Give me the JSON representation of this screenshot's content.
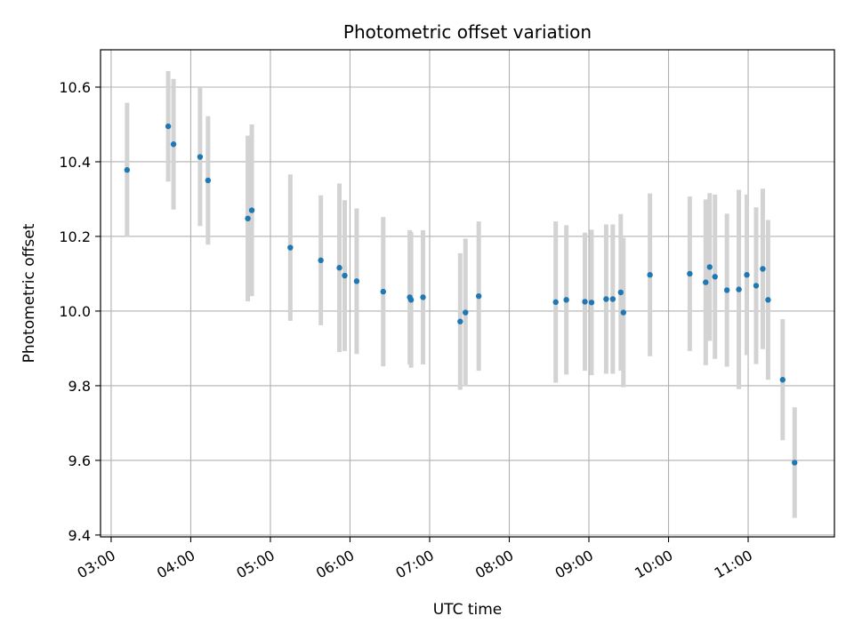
{
  "chart_data": {
    "type": "scatter",
    "title": "Photometric offset variation",
    "xlabel": "UTC time",
    "ylabel": "Photometric offset",
    "x_ticks": [
      "03:00",
      "04:00",
      "05:00",
      "06:00",
      "07:00",
      "08:00",
      "09:00",
      "10:00",
      "11:00"
    ],
    "y_ticks": [
      "9.4",
      "9.6",
      "9.8",
      "10.0",
      "10.2",
      "10.4",
      "10.6"
    ],
    "xlim": [
      "02:52",
      "12:05"
    ],
    "ylim": [
      9.395,
      10.7
    ],
    "grid": true,
    "point_color": "#1f77b4",
    "errorbar_color": "#d3d3d3",
    "points": [
      {
        "t": "03:12",
        "y": 10.378,
        "err": 0.18
      },
      {
        "t": "03:43",
        "y": 10.495,
        "err": 0.148
      },
      {
        "t": "03:47",
        "y": 10.447,
        "err": 0.175
      },
      {
        "t": "04:07",
        "y": 10.413,
        "err": 0.185
      },
      {
        "t": "04:13",
        "y": 10.35,
        "err": 0.172
      },
      {
        "t": "04:43",
        "y": 10.248,
        "err": 0.222
      },
      {
        "t": "04:46",
        "y": 10.27,
        "err": 0.23
      },
      {
        "t": "05:15",
        "y": 10.17,
        "err": 0.196
      },
      {
        "t": "05:38",
        "y": 10.136,
        "err": 0.174
      },
      {
        "t": "05:52",
        "y": 10.116,
        "err": 0.226
      },
      {
        "t": "05:56",
        "y": 10.095,
        "err": 0.202
      },
      {
        "t": "06:05",
        "y": 10.08,
        "err": 0.195
      },
      {
        "t": "06:25",
        "y": 10.052,
        "err": 0.2
      },
      {
        "t": "06:45",
        "y": 10.037,
        "err": 0.18
      },
      {
        "t": "06:46",
        "y": 10.03,
        "err": 0.182
      },
      {
        "t": "06:55",
        "y": 10.037,
        "err": 0.18
      },
      {
        "t": "07:23",
        "y": 9.972,
        "err": 0.183
      },
      {
        "t": "07:27",
        "y": 9.996,
        "err": 0.198
      },
      {
        "t": "07:37",
        "y": 10.04,
        "err": 0.2
      },
      {
        "t": "08:35",
        "y": 10.024,
        "err": 0.216
      },
      {
        "t": "08:43",
        "y": 10.03,
        "err": 0.2
      },
      {
        "t": "08:57",
        "y": 10.025,
        "err": 0.185
      },
      {
        "t": "09:02",
        "y": 10.023,
        "err": 0.195
      },
      {
        "t": "09:13",
        "y": 10.032,
        "err": 0.2
      },
      {
        "t": "09:18",
        "y": 10.032,
        "err": 0.2
      },
      {
        "t": "09:24",
        "y": 10.05,
        "err": 0.21
      },
      {
        "t": "09:26",
        "y": 9.996,
        "err": 0.2
      },
      {
        "t": "09:46",
        "y": 10.097,
        "err": 0.218
      },
      {
        "t": "10:16",
        "y": 10.1,
        "err": 0.207
      },
      {
        "t": "10:28",
        "y": 10.077,
        "err": 0.222
      },
      {
        "t": "10:31",
        "y": 10.118,
        "err": 0.198
      },
      {
        "t": "10:35",
        "y": 10.092,
        "err": 0.22
      },
      {
        "t": "10:44",
        "y": 10.056,
        "err": 0.205
      },
      {
        "t": "10:53",
        "y": 10.058,
        "err": 0.267
      },
      {
        "t": "10:59",
        "y": 10.097,
        "err": 0.215
      },
      {
        "t": "11:06",
        "y": 10.068,
        "err": 0.21
      },
      {
        "t": "11:11",
        "y": 10.113,
        "err": 0.215
      },
      {
        "t": "11:15",
        "y": 10.03,
        "err": 0.214
      },
      {
        "t": "11:26",
        "y": 9.816,
        "err": 0.162
      },
      {
        "t": "11:35",
        "y": 9.594,
        "err": 0.148
      }
    ]
  }
}
